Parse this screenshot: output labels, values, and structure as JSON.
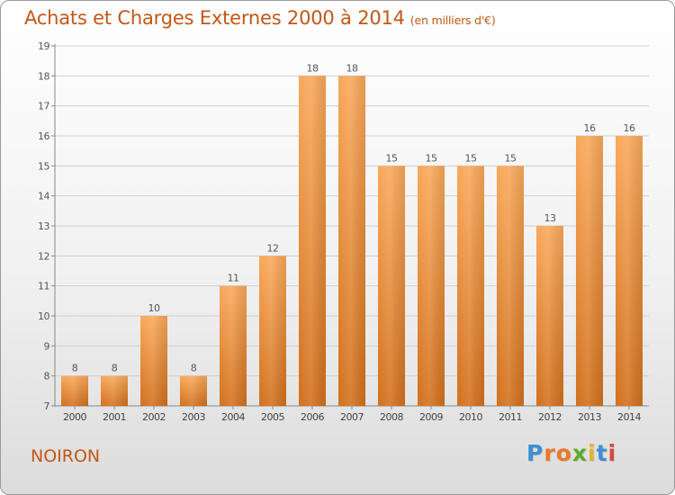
{
  "title": "Achats et Charges Externes 2000 à 2014",
  "subtitle": "(en milliers d'€)",
  "place_name": "NOIRON",
  "logo": {
    "letters": [
      "P",
      "r",
      "o",
      "x",
      "i",
      "t",
      "i"
    ],
    "colors": [
      "#3d8fd1",
      "#e8792a",
      "#e8792a",
      "#5cab2d",
      "#e2b52b",
      "#3d8fd1",
      "#d9463e"
    ]
  },
  "colors": {
    "bar_light": "#f9a85a",
    "bar_dark": "#d2701c",
    "title": "#c25716",
    "grid": "#cfcfcf"
  },
  "chart_data": {
    "type": "bar",
    "title": "Achats et Charges Externes 2000 à 2014",
    "subtitle": "(en milliers d'€)",
    "xlabel": "",
    "ylabel": "",
    "categories": [
      "2000",
      "2001",
      "2002",
      "2003",
      "2004",
      "2005",
      "2006",
      "2007",
      "2008",
      "2009",
      "2010",
      "2011",
      "2012",
      "2013",
      "2014"
    ],
    "values": [
      8,
      8,
      10,
      8,
      11,
      12,
      18,
      18,
      15,
      15,
      15,
      15,
      13,
      16,
      16
    ],
    "data_labels": [
      "8",
      "8",
      "10",
      "8",
      "11",
      "12",
      "18",
      "18",
      "15",
      "15",
      "15",
      "15",
      "13",
      "16",
      "16"
    ],
    "ylim": [
      7,
      19
    ],
    "yticks": [
      "7",
      "8",
      "9",
      "10",
      "11",
      "12",
      "13",
      "14",
      "15",
      "16",
      "17",
      "18",
      "19"
    ],
    "grid": true
  }
}
